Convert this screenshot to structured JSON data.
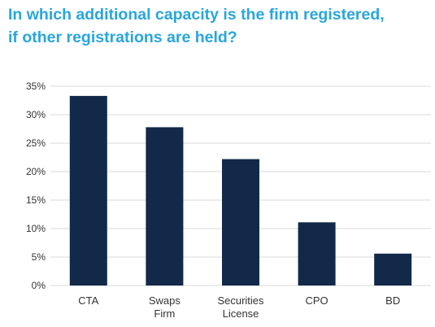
{
  "header": {
    "title_line1": "In which additional capacity is the firm registered,",
    "title_line2": "if other registrations are held?"
  },
  "colors": {
    "title": "#29a6dc",
    "bar": "#13294a",
    "grid": "#d9d9d9",
    "text": "#333333"
  },
  "chart_data": {
    "type": "bar",
    "title": "In which additional capacity is the firm registered, if other registrations are held?",
    "categories": [
      "CTA",
      "Swaps\nFirm",
      "Securities\nLicense",
      "CPO",
      "BD"
    ],
    "values": [
      33.3,
      27.8,
      22.2,
      11.1,
      5.6
    ],
    "ylim": [
      0,
      35
    ],
    "yticks": [
      0,
      5,
      10,
      15,
      20,
      25,
      30,
      35
    ],
    "ytick_labels": [
      "0%",
      "5%",
      "10%",
      "15%",
      "20%",
      "25%",
      "30%",
      "35%"
    ],
    "xlabel": "",
    "ylabel": "",
    "grid": true,
    "legend": "none"
  }
}
